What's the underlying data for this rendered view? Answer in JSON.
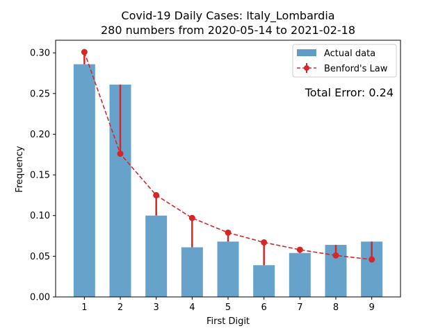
{
  "chart_data": {
    "type": "bar",
    "title_lines": [
      "Covid-19 Daily Cases: Italy_Lombardia",
      "280 numbers from 2020-05-14 to 2021-02-18"
    ],
    "xlabel": "First Digit",
    "ylabel": "Frequency",
    "categories": [
      "1",
      "2",
      "3",
      "4",
      "5",
      "6",
      "7",
      "8",
      "9"
    ],
    "x": [
      1,
      2,
      3,
      4,
      5,
      6,
      7,
      8,
      9
    ],
    "xlim": [
      0.2,
      9.8
    ],
    "ylim": [
      0,
      0.3155
    ],
    "yticks": [
      0.0,
      0.05,
      0.1,
      0.15,
      0.2,
      0.25,
      0.3
    ],
    "ytick_labels": [
      "0.00",
      "0.05",
      "0.10",
      "0.15",
      "0.20",
      "0.25",
      "0.30"
    ],
    "grid": false,
    "legend_position": "top-right",
    "series": [
      {
        "name": "Actual data",
        "type": "bar",
        "color": "#5f9dc8",
        "values": [
          0.286,
          0.261,
          0.1,
          0.061,
          0.068,
          0.039,
          0.054,
          0.064,
          0.068
        ]
      },
      {
        "name": "Benford's Law",
        "type": "line",
        "style": "dashed with circle markers and error bars",
        "color": "#d62728",
        "values": [
          0.301,
          0.176,
          0.125,
          0.097,
          0.079,
          0.067,
          0.058,
          0.051,
          0.046
        ]
      }
    ],
    "annotation": "Total Error: 0.24",
    "annotation_color": "#d62728"
  }
}
